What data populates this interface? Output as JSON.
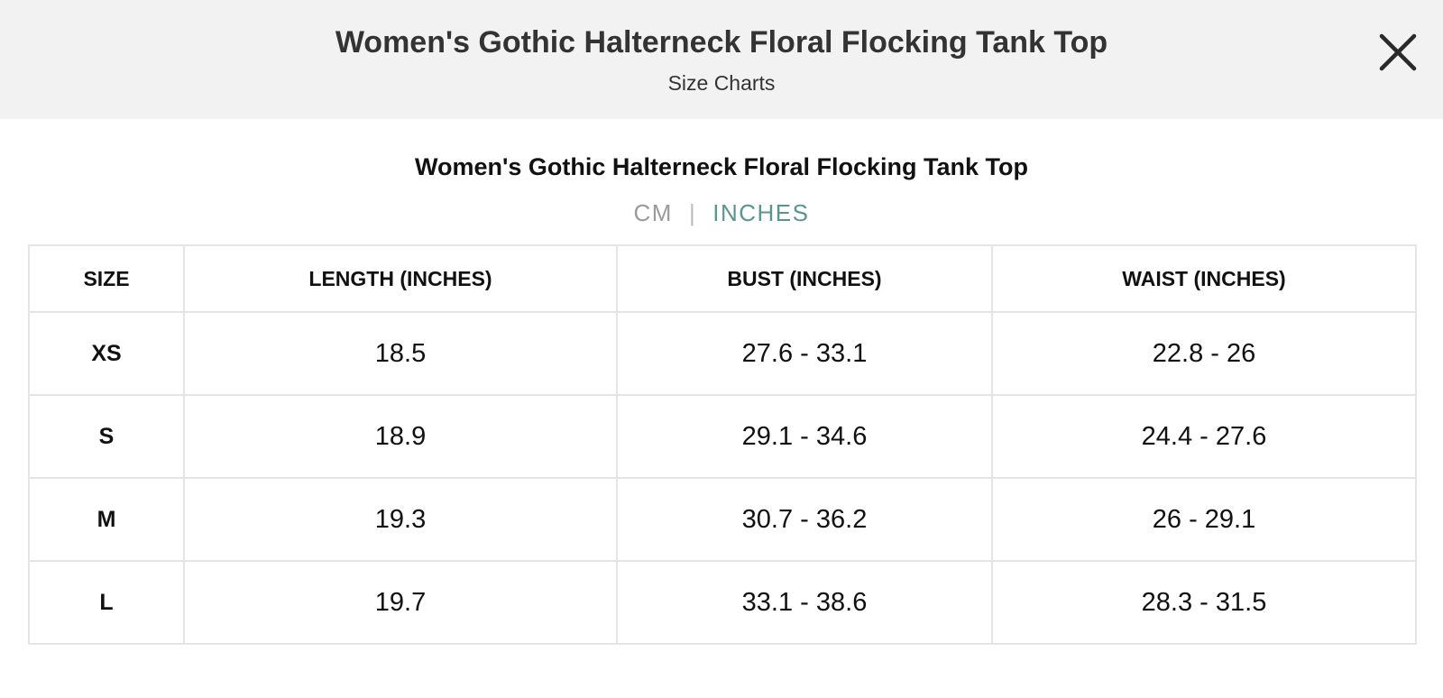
{
  "header": {
    "title": "Women's Gothic Halterneck Floral Flocking Tank Top",
    "subtitle": "Size Charts",
    "close_icon": "close-icon"
  },
  "chart": {
    "title": "Women's Gothic Halterneck Floral Flocking Tank Top",
    "units": {
      "cm": "CM",
      "separator": "|",
      "inches": "INCHES",
      "selected": "inches"
    }
  },
  "table": {
    "columns": [
      "SIZE",
      "LENGTH (INCHES)",
      "BUST (INCHES)",
      "WAIST (INCHES)"
    ],
    "rows": [
      [
        "XS",
        "18.5",
        "27.6 - 33.1",
        "22.8 - 26"
      ],
      [
        "S",
        "18.9",
        "29.1 - 34.6",
        "24.4 - 27.6"
      ],
      [
        "M",
        "19.3",
        "30.7 - 36.2",
        "26 - 29.1"
      ],
      [
        "L",
        "19.7",
        "33.1 - 38.6",
        "28.3 - 31.5"
      ]
    ]
  },
  "colors": {
    "header_bg": "#f2f2f2",
    "accent": "#5a9690",
    "inactive_unit": "#9a9a9a",
    "border": "#e5e5e5"
  }
}
